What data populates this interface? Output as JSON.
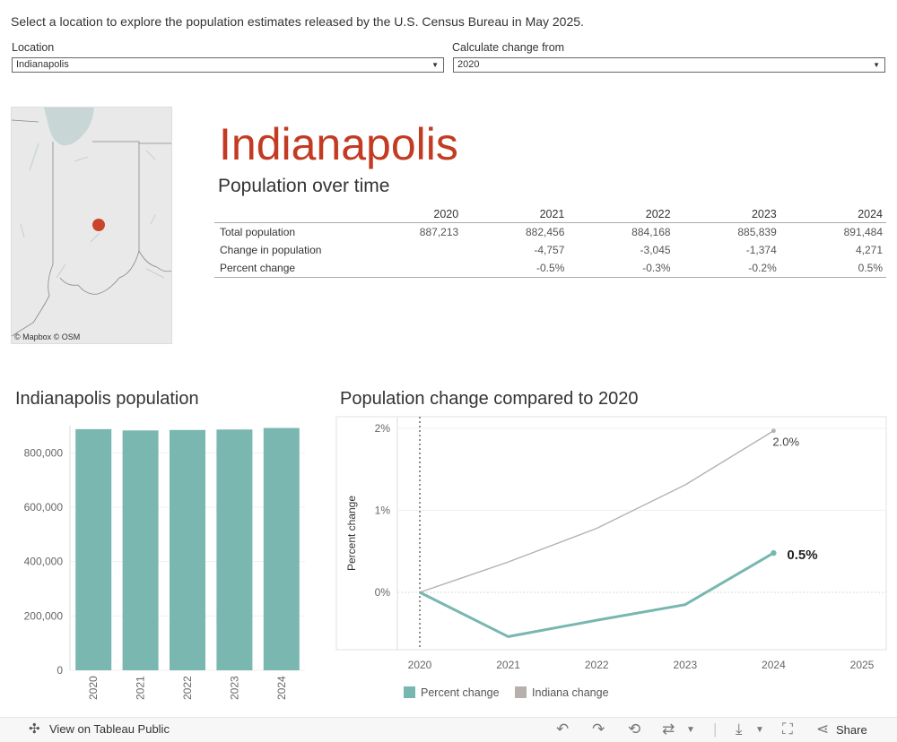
{
  "intro_text": "Select a location to explore the population estimates released by the U.S. Census Bureau in May 2025.",
  "filters": {
    "location_label": "Location",
    "location_value": "Indianapolis",
    "change_label": "Calculate change from",
    "change_value": "2020"
  },
  "map": {
    "attribution": "© Mapbox  © OSM"
  },
  "city": "Indianapolis",
  "table_title": "Population over time",
  "table": {
    "years": [
      "2020",
      "2021",
      "2022",
      "2023",
      "2024"
    ],
    "rows": [
      {
        "label": "Total population",
        "values": [
          "887,213",
          "882,456",
          "884,168",
          "885,839",
          "891,484"
        ]
      },
      {
        "label": "Change in population",
        "values": [
          "",
          "-4,757",
          "-3,045",
          "-1,374",
          "4,271"
        ]
      },
      {
        "label": "Percent change",
        "values": [
          "",
          "-0.5%",
          "-0.3%",
          "-0.2%",
          "0.5%"
        ]
      }
    ]
  },
  "chart_data": [
    {
      "type": "bar",
      "title": "Indianapolis population",
      "categories": [
        "2020",
        "2021",
        "2022",
        "2023",
        "2024"
      ],
      "values": [
        887213,
        882456,
        884168,
        885839,
        891484
      ],
      "ylim": [
        0,
        900000
      ],
      "yticks": [
        0,
        200000,
        400000,
        600000,
        800000
      ],
      "ytick_labels": [
        "0",
        "200,000",
        "400,000",
        "600,000",
        "800,000"
      ],
      "color": "#7ab7b0"
    },
    {
      "type": "line",
      "title": "Population change compared to 2020",
      "ylabel": "Percent change",
      "x": [
        2020,
        2021,
        2022,
        2023,
        2024
      ],
      "xticks": [
        "2020",
        "2021",
        "2022",
        "2023",
        "2024",
        "2025"
      ],
      "yticks": [
        "0%",
        "1%",
        "2%"
      ],
      "series": [
        {
          "name": "Percent change",
          "values": [
            0,
            -0.54,
            -0.34,
            -0.15,
            0.48
          ],
          "color": "#78b7b0",
          "end_label": "0.5%"
        },
        {
          "name": "Indiana change",
          "values": [
            0,
            0.37,
            0.78,
            1.31,
            1.97
          ],
          "color": "#b8b0ac",
          "end_label": "2.0%"
        }
      ],
      "ylim": [
        -0.7,
        2.0
      ],
      "reference_line_x": 2020
    }
  ],
  "legend": [
    "Percent change",
    "Indiana change"
  ],
  "footer": {
    "link": "View on Tableau Public",
    "share": "Share"
  }
}
